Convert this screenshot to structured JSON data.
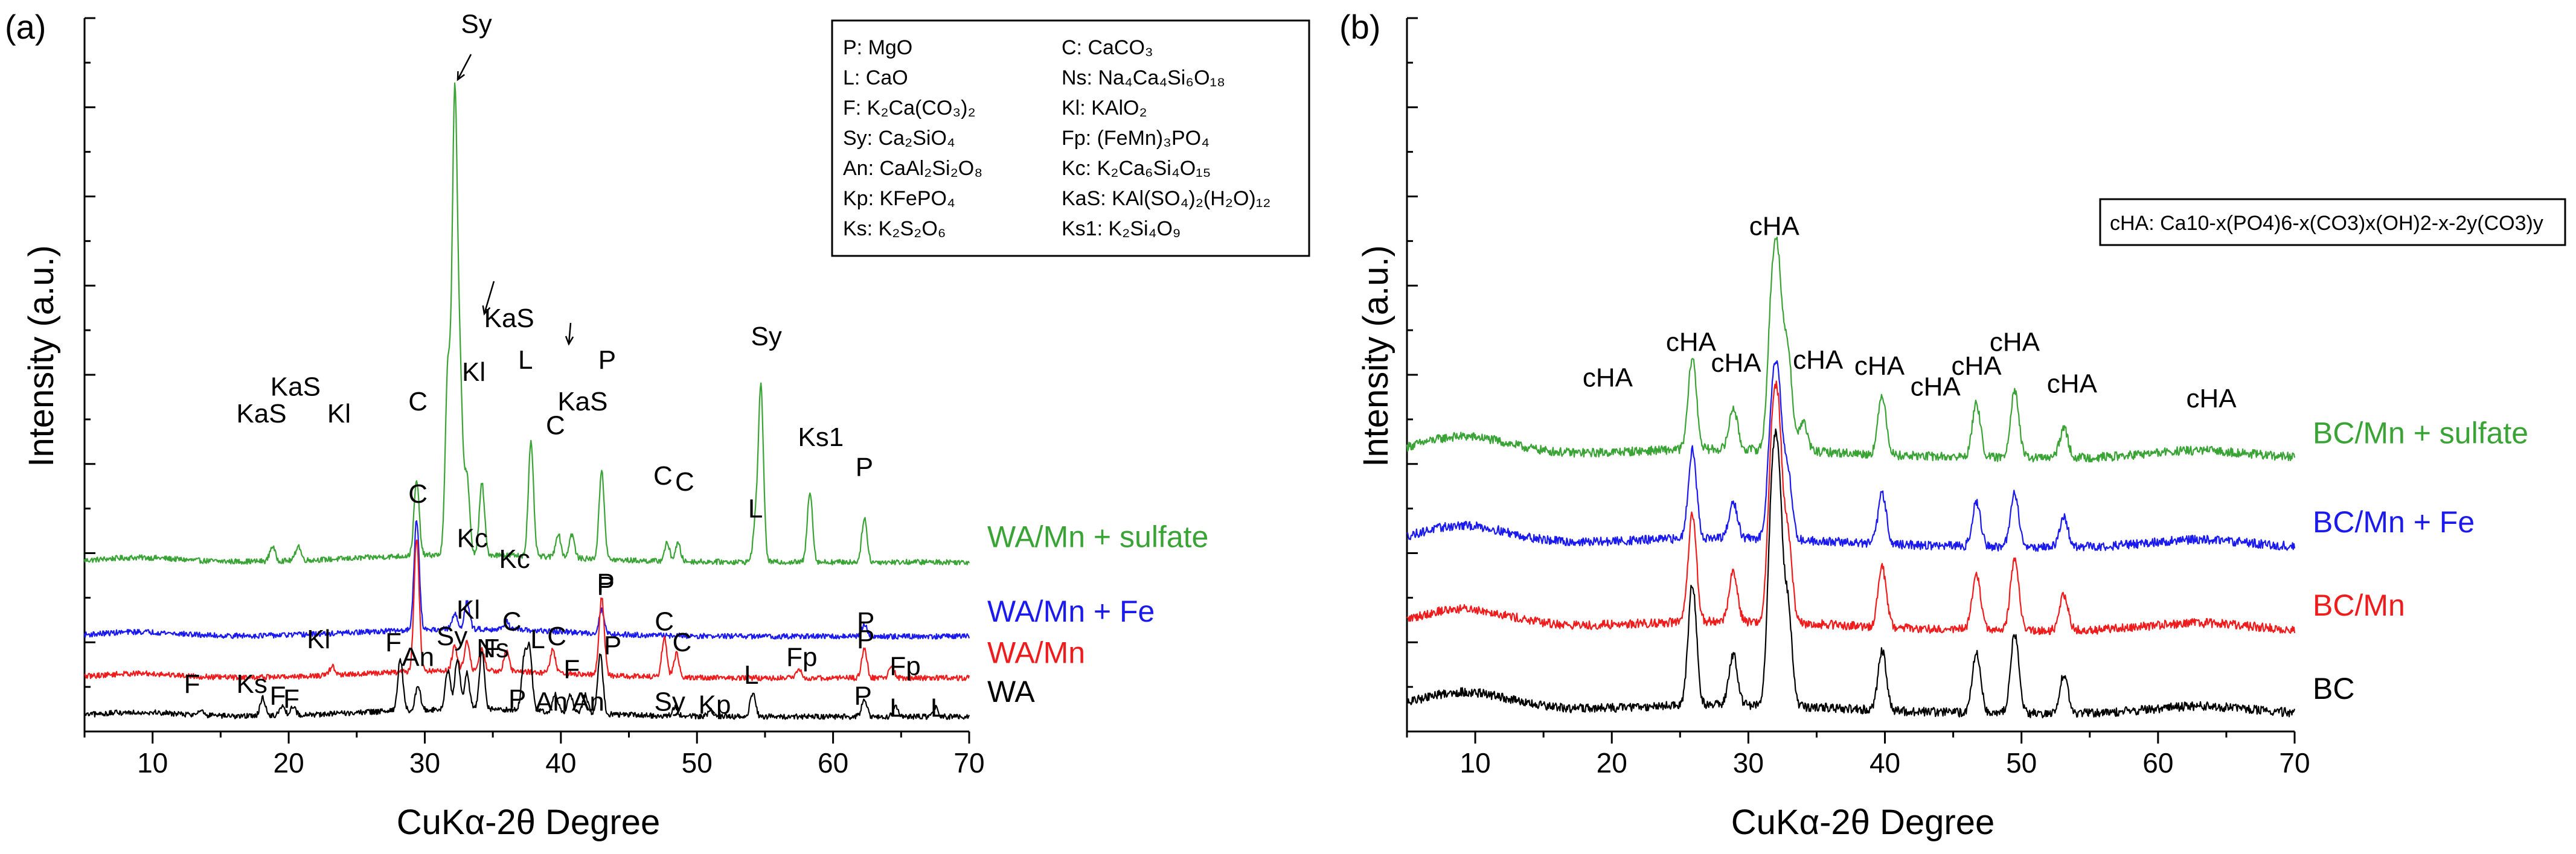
{
  "chart_data": [
    {
      "type": "line",
      "panel_label": "(a)",
      "xlabel": "CuKα-2θ Degree",
      "ylabel": "Intensity (a.u.)",
      "xlim": [
        5,
        70
      ],
      "xticks": [
        10,
        20,
        30,
        40,
        50,
        60,
        70
      ],
      "y_tick_labels": "none",
      "legend_box": [
        [
          "P: MgO",
          "C: CaCO₃"
        ],
        [
          "L: CaO",
          "Ns: Na₄Ca₄Si₆O₁₈"
        ],
        [
          "F: K₂Ca(CO₃)₂",
          "Kl: KAlO₂"
        ],
        [
          "Sy: Ca₂SiO₄",
          "Fp: (FeMn)₃PO₄"
        ],
        [
          "An: CaAl₂Si₂O₈",
          "Kc: K₂Ca₆Si₄O₁₅"
        ],
        [
          "Kp: KFePO₄",
          "KaS: KAl(SO₄)₂(H₂O)₁₂"
        ],
        [
          "Ks: K₂S₂O₆",
          "Ks1: K₂Si₄O₉"
        ]
      ],
      "series": [
        {
          "name": "WA/Mn + sulfate",
          "color": "#3aa335",
          "baseline": 0.57,
          "peaks": [
            [
              18.8,
              0.05
            ],
            [
              20.7,
              0.05
            ],
            [
              29.4,
              0.25
            ],
            [
              31.7,
              0.62
            ],
            [
              32.2,
              1.5
            ],
            [
              32.6,
              0.55
            ],
            [
              33.1,
              0.26
            ],
            [
              34.2,
              0.24
            ],
            [
              37.8,
              0.38
            ],
            [
              39.8,
              0.08
            ],
            [
              40.8,
              0.08
            ],
            [
              43,
              0.3
            ],
            [
              47.8,
              0.06
            ],
            [
              48.6,
              0.06
            ],
            [
              54.3,
              0.12
            ],
            [
              54.7,
              0.58
            ],
            [
              58.3,
              0.24
            ],
            [
              62.3,
              0.15
            ]
          ],
          "peak_labels": [
            {
              "text": "KaS",
              "x": 18,
              "y": 1.04
            },
            {
              "text": "KaS",
              "x": 20.5,
              "y": 1.13
            },
            {
              "text": "Kl",
              "x": 23.7,
              "y": 1.04
            },
            {
              "text": "C",
              "x": 29.5,
              "y": 1.08
            },
            {
              "text": "Sy",
              "x": 33.8,
              "y": 2.35
            },
            {
              "text": "Kl",
              "x": 33.6,
              "y": 1.18
            },
            {
              "text": "KaS",
              "x": 36.2,
              "y": 1.36
            },
            {
              "text": "L",
              "x": 37.4,
              "y": 1.22
            },
            {
              "text": "C",
              "x": 39.6,
              "y": 1.0
            },
            {
              "text": "KaS",
              "x": 41.6,
              "y": 1.08
            },
            {
              "text": "P",
              "x": 43.4,
              "y": 1.22
            },
            {
              "text": "C",
              "x": 47.5,
              "y": 0.83
            },
            {
              "text": "C",
              "x": 49.1,
              "y": 0.81
            },
            {
              "text": "L",
              "x": 54.3,
              "y": 0.72
            },
            {
              "text": "Sy",
              "x": 55.1,
              "y": 1.3
            },
            {
              "text": "Ks1",
              "x": 59.1,
              "y": 0.96
            },
            {
              "text": "P",
              "x": 62.3,
              "y": 0.86
            }
          ]
        },
        {
          "name": "WA/Mn + Fe",
          "color": "#1a1aee",
          "baseline": 0.32,
          "peaks": [
            [
              29.4,
              0.37
            ],
            [
              32.2,
              0.05
            ],
            [
              33.1,
              0.09
            ],
            [
              36,
              0.03
            ],
            [
              43,
              0.08
            ],
            [
              62.3,
              0.04
            ]
          ],
          "peak_labels": [
            {
              "text": "C",
              "x": 29.5,
              "y": 0.77
            },
            {
              "text": "Kc",
              "x": 33.5,
              "y": 0.62
            },
            {
              "text": "Kc",
              "x": 36.6,
              "y": 0.55
            },
            {
              "text": "P",
              "x": 43.3,
              "y": 0.46
            },
            {
              "text": "P",
              "x": 62.4,
              "y": 0.34
            }
          ]
        },
        {
          "name": "WA/Mn",
          "color": "#ee1c1c",
          "baseline": 0.18,
          "peaks": [
            [
              23.2,
              0.03
            ],
            [
              29.4,
              0.45
            ],
            [
              32.2,
              0.08
            ],
            [
              33.1,
              0.1
            ],
            [
              34.2,
              0.07
            ],
            [
              36,
              0.07
            ],
            [
              39.4,
              0.08
            ],
            [
              43,
              0.26
            ],
            [
              47.6,
              0.13
            ],
            [
              48.5,
              0.08
            ],
            [
              57.5,
              0.03
            ],
            [
              62.3,
              0.1
            ],
            [
              64.3,
              0.04
            ]
          ],
          "peak_labels": [
            {
              "text": "Kl",
              "x": 22.2,
              "y": 0.28
            },
            {
              "text": "Kl",
              "x": 33.2,
              "y": 0.38
            },
            {
              "text": "Ns",
              "x": 35,
              "y": 0.25
            },
            {
              "text": "C",
              "x": 36.4,
              "y": 0.34
            },
            {
              "text": "C",
              "x": 39.7,
              "y": 0.29
            },
            {
              "text": "P",
              "x": 43.3,
              "y": 0.47
            },
            {
              "text": "C",
              "x": 47.6,
              "y": 0.34
            },
            {
              "text": "C",
              "x": 48.9,
              "y": 0.27
            },
            {
              "text": "Fp",
              "x": 57.7,
              "y": 0.22
            },
            {
              "text": "P",
              "x": 62.4,
              "y": 0.28
            },
            {
              "text": "Fp",
              "x": 65.3,
              "y": 0.19
            }
          ]
        },
        {
          "name": "WA",
          "color": "#000000",
          "baseline": 0.05,
          "peaks": [
            [
              13.5,
              0.02
            ],
            [
              18.1,
              0.06
            ],
            [
              19.5,
              0.03
            ],
            [
              20.3,
              0.03
            ],
            [
              28.2,
              0.17
            ],
            [
              29.5,
              0.08
            ],
            [
              31.7,
              0.13
            ],
            [
              32.4,
              0.17
            ],
            [
              33.1,
              0.12
            ],
            [
              34.2,
              0.19
            ],
            [
              37.3,
              0.17
            ],
            [
              37.7,
              0.2
            ],
            [
              39.6,
              0.06
            ],
            [
              40.7,
              0.06
            ],
            [
              41.8,
              0.06
            ],
            [
              42.9,
              0.2
            ],
            [
              48.4,
              0.03
            ],
            [
              51,
              0.02
            ],
            [
              54.1,
              0.08
            ],
            [
              62.3,
              0.06
            ],
            [
              64.6,
              0.03
            ],
            [
              67.5,
              0.03
            ]
          ],
          "peak_labels": [
            {
              "text": "F",
              "x": 12.9,
              "y": 0.13
            },
            {
              "text": "Ks",
              "x": 17.3,
              "y": 0.13
            },
            {
              "text": "F",
              "x": 19.2,
              "y": 0.09
            },
            {
              "text": "F",
              "x": 20.2,
              "y": 0.08
            },
            {
              "text": "F",
              "x": 27.7,
              "y": 0.27
            },
            {
              "text": "An",
              "x": 29.5,
              "y": 0.22
            },
            {
              "text": "Sy",
              "x": 32,
              "y": 0.29
            },
            {
              "text": "F",
              "x": 34.9,
              "y": 0.25
            },
            {
              "text": "P",
              "x": 36.8,
              "y": 0.08
            },
            {
              "text": "L",
              "x": 38.3,
              "y": 0.28
            },
            {
              "text": "An",
              "x": 39.3,
              "y": 0.07
            },
            {
              "text": "F",
              "x": 40.8,
              "y": 0.18
            },
            {
              "text": "An",
              "x": 42,
              "y": 0.07
            },
            {
              "text": "P",
              "x": 43.8,
              "y": 0.26
            },
            {
              "text": "Sy",
              "x": 48,
              "y": 0.07
            },
            {
              "text": "Kp",
              "x": 51.3,
              "y": 0.06
            },
            {
              "text": "L",
              "x": 54,
              "y": 0.16
            },
            {
              "text": "P",
              "x": 62.2,
              "y": 0.09
            },
            {
              "text": "L",
              "x": 64.7,
              "y": 0.05
            },
            {
              "text": "L",
              "x": 67.7,
              "y": 0.05
            }
          ]
        }
      ]
    },
    {
      "type": "line",
      "panel_label": "(b)",
      "xlabel": "CuKα-2θ Degree",
      "ylabel": "Intensity (a.u.)",
      "xlim": [
        5,
        70
      ],
      "xticks": [
        10,
        20,
        30,
        40,
        50,
        60,
        70
      ],
      "y_tick_labels": "none",
      "legend_box": "cHA: Ca10-x(PO4)6-x(CO3)x(OH)2-x-2y(CO3)y",
      "series": [
        {
          "name": "BC/Mn + sulfate",
          "color": "#3aa335",
          "baseline": 0.92,
          "peaks": [
            [
              25.9,
              0.31
            ],
            [
              28.9,
              0.14
            ],
            [
              31.7,
              0.45
            ],
            [
              32.2,
              0.54
            ],
            [
              32.9,
              0.33
            ],
            [
              34,
              0.1
            ],
            [
              39.8,
              0.2
            ],
            [
              46.7,
              0.18
            ],
            [
              49.5,
              0.23
            ],
            [
              53.1,
              0.1
            ]
          ],
          "peak_labels": [
            {
              "text": "cHA",
              "x": 25.8,
              "y": 1.28
            },
            {
              "text": "cHA",
              "x": 19.7,
              "y": 1.16
            },
            {
              "text": "cHA",
              "x": 29.1,
              "y": 1.21
            },
            {
              "text": "cHA",
              "x": 31.9,
              "y": 1.67
            },
            {
              "text": "cHA",
              "x": 35.1,
              "y": 1.22
            },
            {
              "text": "cHA",
              "x": 39.6,
              "y": 1.2
            },
            {
              "text": "cHA",
              "x": 43.7,
              "y": 1.13
            },
            {
              "text": "cHA",
              "x": 46.7,
              "y": 1.2
            },
            {
              "text": "cHA",
              "x": 49.5,
              "y": 1.28
            },
            {
              "text": "cHA",
              "x": 53.7,
              "y": 1.14
            },
            {
              "text": "cHA",
              "x": 63.9,
              "y": 1.09
            }
          ]
        },
        {
          "name": "BC/Mn + Fe",
          "color": "#1a1aee",
          "baseline": 0.62,
          "peaks": [
            [
              25.9,
              0.3
            ],
            [
              28.9,
              0.12
            ],
            [
              31.7,
              0.38
            ],
            [
              32.2,
              0.46
            ],
            [
              32.9,
              0.22
            ],
            [
              39.8,
              0.17
            ],
            [
              46.7,
              0.15
            ],
            [
              49.5,
              0.18
            ],
            [
              53.1,
              0.1
            ]
          ],
          "peak_labels": []
        },
        {
          "name": "BC/Mn",
          "color": "#ee1c1c",
          "baseline": 0.34,
          "peaks": [
            [
              25.9,
              0.36
            ],
            [
              28.9,
              0.17
            ],
            [
              31.7,
              0.51
            ],
            [
              32.2,
              0.61
            ],
            [
              32.9,
              0.29
            ],
            [
              39.8,
              0.2
            ],
            [
              46.7,
              0.19
            ],
            [
              49.5,
              0.24
            ],
            [
              53.1,
              0.12
            ]
          ],
          "peak_labels": []
        },
        {
          "name": "BC",
          "color": "#000000",
          "baseline": 0.06,
          "peaks": [
            [
              25.9,
              0.41
            ],
            [
              28.9,
              0.17
            ],
            [
              31.7,
              0.6
            ],
            [
              32.2,
              0.69
            ],
            [
              32.9,
              0.33
            ],
            [
              39.8,
              0.2
            ],
            [
              46.7,
              0.21
            ],
            [
              49.5,
              0.27
            ],
            [
              53.1,
              0.13
            ]
          ],
          "peak_labels": []
        }
      ]
    }
  ]
}
